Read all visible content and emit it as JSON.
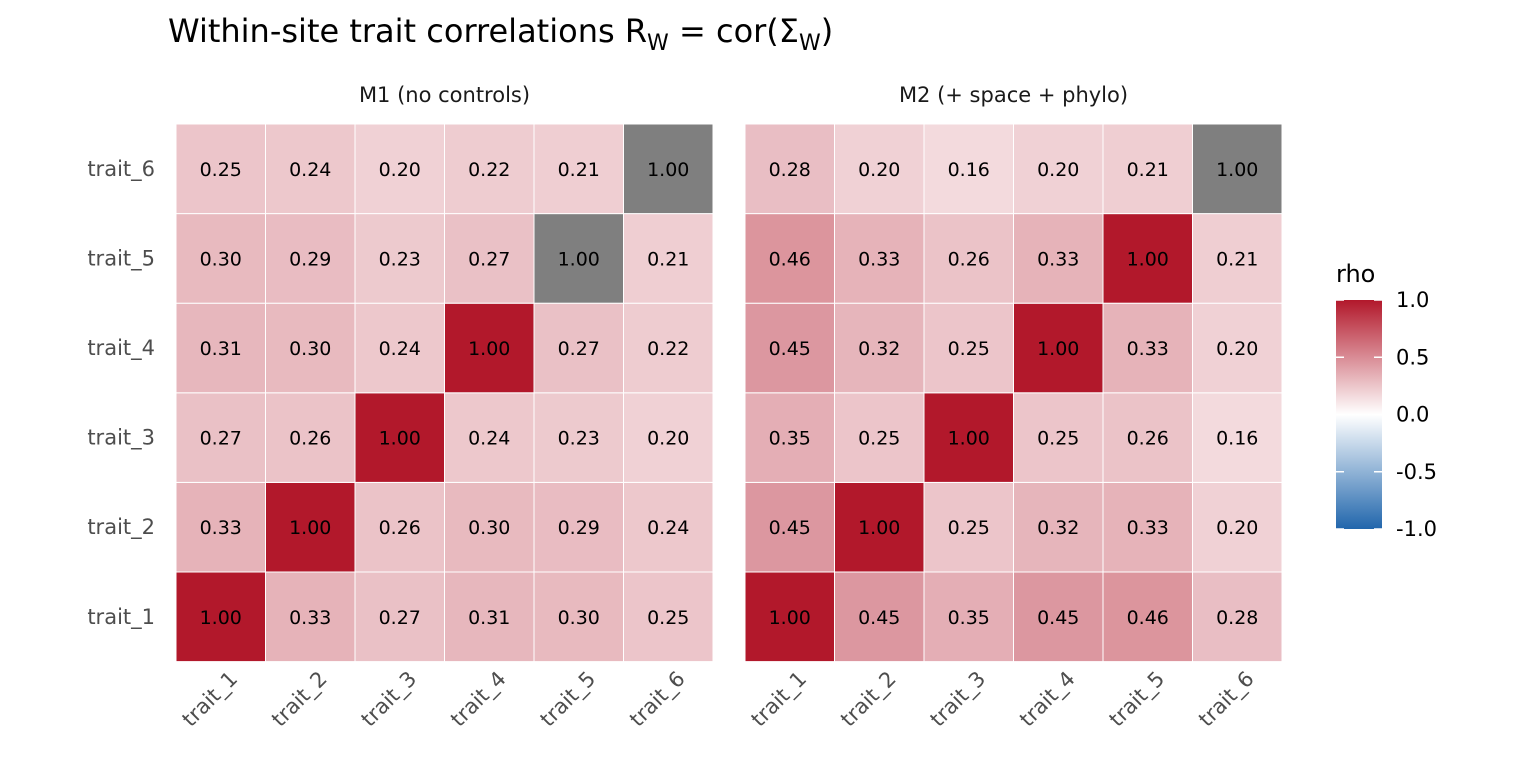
{
  "chart_data": {
    "type": "heatmap",
    "title": {
      "prefix": "Within-site trait correlations R",
      "prefix_sub": "W",
      "middle": " = cor(Σ",
      "middle_sub": "W",
      "suffix": ")"
    },
    "traits": [
      "trait_1",
      "trait_2",
      "trait_3",
      "trait_4",
      "trait_5",
      "trait_6"
    ],
    "panels": [
      {
        "name": "M1 (no controls)",
        "matrix": [
          [
            1.0,
            0.33,
            0.27,
            0.31,
            0.3,
            0.25
          ],
          [
            0.33,
            1.0,
            0.26,
            0.3,
            0.29,
            0.24
          ],
          [
            0.27,
            0.26,
            1.0,
            0.24,
            0.23,
            0.2
          ],
          [
            0.31,
            0.3,
            0.24,
            1.0,
            0.27,
            0.22
          ],
          [
            0.3,
            0.29,
            0.23,
            0.27,
            1.0,
            0.21
          ],
          [
            0.25,
            0.24,
            0.2,
            0.22,
            0.21,
            1.0
          ]
        ],
        "gray_diagonal_traits": [
          "trait_5",
          "trait_6"
        ]
      },
      {
        "name": "M2 (+ space + phylo)",
        "matrix": [
          [
            1.0,
            0.45,
            0.35,
            0.45,
            0.46,
            0.28
          ],
          [
            0.45,
            1.0,
            0.25,
            0.32,
            0.33,
            0.2
          ],
          [
            0.35,
            0.25,
            1.0,
            0.25,
            0.26,
            0.16
          ],
          [
            0.45,
            0.32,
            0.25,
            1.0,
            0.33,
            0.2
          ],
          [
            0.46,
            0.33,
            0.26,
            0.33,
            1.0,
            0.21
          ],
          [
            0.28,
            0.2,
            0.16,
            0.2,
            0.21,
            1.0
          ]
        ],
        "gray_diagonal_traits": [
          "trait_6"
        ]
      }
    ],
    "legend": {
      "title": "rho",
      "ticks": [
        1.0,
        0.5,
        0.0,
        -0.5,
        -1.0
      ],
      "tick_labels": [
        "1.0",
        "0.5",
        "0.0",
        "-0.5",
        "-1.0"
      ],
      "limits": [
        -1,
        1
      ],
      "placement": "right"
    },
    "colors": {
      "high": "#b2182b",
      "mid": "#ffffff",
      "low": "#2166ac",
      "na": "#7f7f7f"
    },
    "grid": false
  }
}
